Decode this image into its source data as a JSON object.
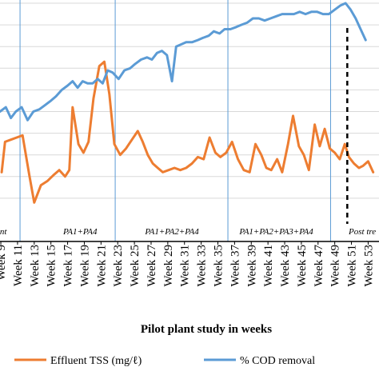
{
  "chart_data": {
    "type": "line",
    "xlabel": "Pilot plant study in weeks",
    "x_tick_labels": [
      "Week 9",
      "Week 11",
      "Week 13",
      "Week 15",
      "Week 17",
      "Week 19",
      "Week 21",
      "Week 23",
      "Week 25",
      "Week 27",
      "Week 29",
      "Week 31",
      "Week 33",
      "Week 35",
      "Week 37",
      "Week 39",
      "Week 41",
      "Week 43",
      "Week 45",
      "Week 47",
      "Week 49",
      "Week 51",
      "Week 53"
    ],
    "x_tick_weeks": [
      9,
      11,
      13,
      15,
      17,
      19,
      21,
      23,
      25,
      27,
      29,
      31,
      33,
      35,
      37,
      39,
      41,
      43,
      45,
      47,
      49,
      51,
      53
    ],
    "x_range": [
      8.9,
      54.3
    ],
    "y_range": [
      0,
      100
    ],
    "grid": "horizontal",
    "phases": [
      {
        "label": "nt",
        "label_week": 9.3
      },
      {
        "label": "PA1+PA4",
        "label_week": 18.5
      },
      {
        "label": "PA1+PA2+PA4",
        "label_week": 29.5
      },
      {
        "label": "PA1+PA2+PA3+PA4",
        "label_week": 42.0
      },
      {
        "label": "Post tre",
        "label_week": 52.3
      }
    ],
    "phase_boundaries": [
      11.3,
      22.7,
      36.2,
      48.5
    ],
    "treatment_line_week": 50.5,
    "series": [
      {
        "name": "Effluent TSS (mg/ℓ)",
        "color": "#ED7D31",
        "points": [
          [
            9.1,
            22
          ],
          [
            9.5,
            36
          ],
          [
            10.2,
            37
          ],
          [
            10.9,
            38
          ],
          [
            11.6,
            39
          ],
          [
            12.4,
            21
          ],
          [
            13.0,
            8
          ],
          [
            13.8,
            16
          ],
          [
            14.6,
            18
          ],
          [
            15.4,
            21
          ],
          [
            16.0,
            23
          ],
          [
            16.7,
            20
          ],
          [
            17.2,
            23
          ],
          [
            17.6,
            52
          ],
          [
            18.3,
            35
          ],
          [
            18.9,
            31
          ],
          [
            19.5,
            36
          ],
          [
            20.1,
            56
          ],
          [
            20.8,
            71
          ],
          [
            21.4,
            73
          ],
          [
            22.0,
            58
          ],
          [
            22.6,
            35
          ],
          [
            23.3,
            30
          ],
          [
            24.0,
            33
          ],
          [
            24.7,
            37
          ],
          [
            25.4,
            41
          ],
          [
            26.0,
            36
          ],
          [
            26.6,
            30
          ],
          [
            27.2,
            26
          ],
          [
            27.8,
            24
          ],
          [
            28.4,
            22
          ],
          [
            29.1,
            23
          ],
          [
            29.8,
            24
          ],
          [
            30.5,
            23
          ],
          [
            31.2,
            24
          ],
          [
            31.9,
            26
          ],
          [
            32.6,
            29
          ],
          [
            33.3,
            28
          ],
          [
            34.0,
            38
          ],
          [
            34.7,
            31
          ],
          [
            35.3,
            29
          ],
          [
            36.0,
            31
          ],
          [
            36.7,
            36
          ],
          [
            37.4,
            28
          ],
          [
            38.1,
            23
          ],
          [
            38.8,
            22
          ],
          [
            39.5,
            35
          ],
          [
            40.2,
            30
          ],
          [
            40.8,
            24
          ],
          [
            41.4,
            23
          ],
          [
            42.1,
            28
          ],
          [
            42.7,
            22
          ],
          [
            43.4,
            35
          ],
          [
            44.0,
            48
          ],
          [
            44.7,
            34
          ],
          [
            45.3,
            30
          ],
          [
            45.9,
            23
          ],
          [
            46.6,
            44
          ],
          [
            47.2,
            34
          ],
          [
            47.8,
            42
          ],
          [
            48.4,
            33
          ],
          [
            49.0,
            31
          ],
          [
            49.6,
            28
          ],
          [
            50.2,
            35
          ],
          [
            50.7,
            29
          ],
          [
            51.3,
            26
          ],
          [
            51.9,
            24
          ],
          [
            52.4,
            25
          ],
          [
            53.0,
            27
          ],
          [
            53.6,
            22
          ]
        ]
      },
      {
        "name": "% COD removal",
        "color": "#5B9BD5",
        "points": [
          [
            8.9,
            50
          ],
          [
            9.6,
            52
          ],
          [
            10.2,
            47
          ],
          [
            10.8,
            50
          ],
          [
            11.5,
            52
          ],
          [
            12.2,
            46
          ],
          [
            12.9,
            50
          ],
          [
            13.6,
            51
          ],
          [
            14.3,
            53
          ],
          [
            15.0,
            55
          ],
          [
            15.6,
            57
          ],
          [
            16.3,
            60
          ],
          [
            17.0,
            62
          ],
          [
            17.6,
            64
          ],
          [
            18.2,
            61
          ],
          [
            18.8,
            64
          ],
          [
            19.4,
            63
          ],
          [
            20.0,
            63
          ],
          [
            20.6,
            65
          ],
          [
            21.2,
            63
          ],
          [
            21.8,
            69
          ],
          [
            22.4,
            68
          ],
          [
            23.1,
            65
          ],
          [
            23.8,
            69
          ],
          [
            24.5,
            70
          ],
          [
            25.1,
            72
          ],
          [
            25.8,
            74
          ],
          [
            26.5,
            75
          ],
          [
            27.1,
            74
          ],
          [
            27.7,
            77
          ],
          [
            28.3,
            78
          ],
          [
            28.9,
            76
          ],
          [
            29.5,
            64
          ],
          [
            30.0,
            80
          ],
          [
            30.6,
            81
          ],
          [
            31.2,
            82
          ],
          [
            31.9,
            82
          ],
          [
            32.6,
            83
          ],
          [
            33.2,
            84
          ],
          [
            33.9,
            85
          ],
          [
            34.5,
            87
          ],
          [
            35.2,
            86
          ],
          [
            35.8,
            88
          ],
          [
            36.5,
            88
          ],
          [
            37.2,
            89
          ],
          [
            37.8,
            90
          ],
          [
            38.5,
            91
          ],
          [
            39.2,
            93
          ],
          [
            39.9,
            93
          ],
          [
            40.6,
            92
          ],
          [
            41.3,
            93
          ],
          [
            42.0,
            94
          ],
          [
            42.7,
            95
          ],
          [
            43.4,
            95
          ],
          [
            44.1,
            95
          ],
          [
            44.8,
            96
          ],
          [
            45.5,
            95
          ],
          [
            46.2,
            96
          ],
          [
            46.9,
            96
          ],
          [
            47.6,
            95
          ],
          [
            48.3,
            95
          ],
          [
            49.0,
            97
          ],
          [
            49.7,
            99
          ],
          [
            50.3,
            100
          ],
          [
            50.9,
            97
          ],
          [
            51.5,
            93
          ],
          [
            52.1,
            88
          ],
          [
            52.7,
            83
          ]
        ]
      }
    ],
    "legend": {
      "placement": "bottom"
    }
  }
}
